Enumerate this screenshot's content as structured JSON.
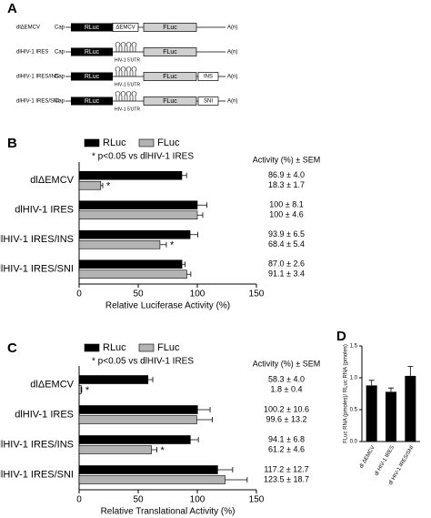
{
  "diagram": {
    "panel": "A",
    "constructs": [
      {
        "name": "dlΔEMCV",
        "cap": "Cap",
        "rluc": "RLuc",
        "spacer": "ΔEMCV",
        "fluc": "FLuc",
        "tail": "A(n)"
      },
      {
        "name": "dlHIV-1 IRES",
        "cap": "Cap",
        "rluc": "RLuc",
        "utr": "HIV-1 5'UTR",
        "fluc": "FLuc",
        "tail": "A(n)"
      },
      {
        "name": "dlHIV-1 IRES/INS",
        "cap": "Cap",
        "rluc": "RLuc",
        "utr": "HIV-1 5'UTR",
        "fluc": "FLuc",
        "insert": "INS",
        "tail": "A(n)"
      },
      {
        "name": "dlHIV-1 IRES/SNI",
        "cap": "Cap",
        "rluc": "RLuc",
        "utr": "HIV-1 5'UTR",
        "fluc": "FLuc",
        "insert": "SNI",
        "tail": "A(n)"
      }
    ]
  },
  "chart_data": [
    {
      "type": "bar",
      "orientation": "horizontal",
      "panel": "B",
      "note": "* p<0.05 vs dlHIV-1 IRES",
      "xlabel": "Relative Luciferase Activity (%)",
      "value_labels_header": "Activity (%) ± SEM",
      "categories": [
        "dlΔEMCV",
        "dlHIV-1 IRES",
        "dlHIV-1 IRES/INS",
        "dlHIV-1 IRES/SNI"
      ],
      "series": [
        {
          "name": "RLuc",
          "color": "#000000",
          "values": [
            86.9,
            100,
            93.9,
            87.0
          ],
          "errors": [
            4.0,
            8.1,
            6.5,
            2.6
          ],
          "value_labels": [
            "86.9 ± 4.0",
            "100 ± 8.1",
            "93.9 ± 6.5",
            "87.0 ± 2.6"
          ]
        },
        {
          "name": "FLuc",
          "color": "#b3b3b3",
          "values": [
            18.3,
            100,
            68.4,
            91.1
          ],
          "errors": [
            1.7,
            4.6,
            5.4,
            3.4
          ],
          "value_labels": [
            "18.3 ± 1.7",
            "100 ± 4.6",
            "68.4 ± 5.4",
            "91.1 ± 3.4"
          ],
          "annotations": [
            "*",
            null,
            "*",
            null
          ]
        }
      ],
      "xlim": [
        0,
        150
      ],
      "xticks": [
        0,
        50,
        100,
        150
      ]
    },
    {
      "type": "bar",
      "orientation": "horizontal",
      "panel": "C",
      "note": "* p<0.05 vs dlHIV-1 IRES",
      "xlabel": "Relative Translational Activity (%)",
      "value_labels_header": "Activity (%) ± SEM",
      "categories": [
        "dlΔEMCV",
        "dlHIV-1 IRES",
        "dlHIV-1 IRES/INS",
        "dlHIV-1 IRES/SNI"
      ],
      "series": [
        {
          "name": "RLuc",
          "color": "#000000",
          "values": [
            58.3,
            100.2,
            94.1,
            117.2
          ],
          "errors": [
            4.0,
            10.6,
            6.8,
            12.7
          ],
          "value_labels": [
            "58.3 ± 4.0",
            "100.2 ± 10.6",
            "94.1 ± 6.8",
            "117.2 ± 12.7"
          ]
        },
        {
          "name": "FLuc",
          "color": "#b3b3b3",
          "values": [
            1.8,
            99.6,
            61.2,
            123.5
          ],
          "errors": [
            0.4,
            13.2,
            4.6,
            18.7
          ],
          "value_labels": [
            "1.8 ± 0.4",
            "99.6 ± 13.2",
            "61.2 ± 4.6",
            "123.5 ± 18.7"
          ],
          "annotations": [
            "*",
            null,
            "*",
            null
          ]
        }
      ],
      "xlim": [
        0,
        150
      ],
      "xticks": [
        0,
        50,
        100,
        150
      ]
    },
    {
      "type": "bar",
      "orientation": "vertical",
      "panel": "D",
      "ylabel": "FLuc RNA (pmoles)/ RLuc RNA (pmoles)",
      "categories": [
        "dl ΔEMCV",
        "dl HIV-1 IRES",
        "dl HIV-1 IRES/SNI"
      ],
      "values": [
        0.88,
        0.78,
        1.03
      ],
      "errors": [
        0.08,
        0.06,
        0.15
      ],
      "color": "#000000",
      "ylim": [
        0,
        1.5
      ],
      "yticks": [
        {
          "value": 0,
          "label": "0.0"
        },
        0.5,
        {
          "value": 1,
          "label": "1.0"
        },
        1.5
      ]
    }
  ]
}
